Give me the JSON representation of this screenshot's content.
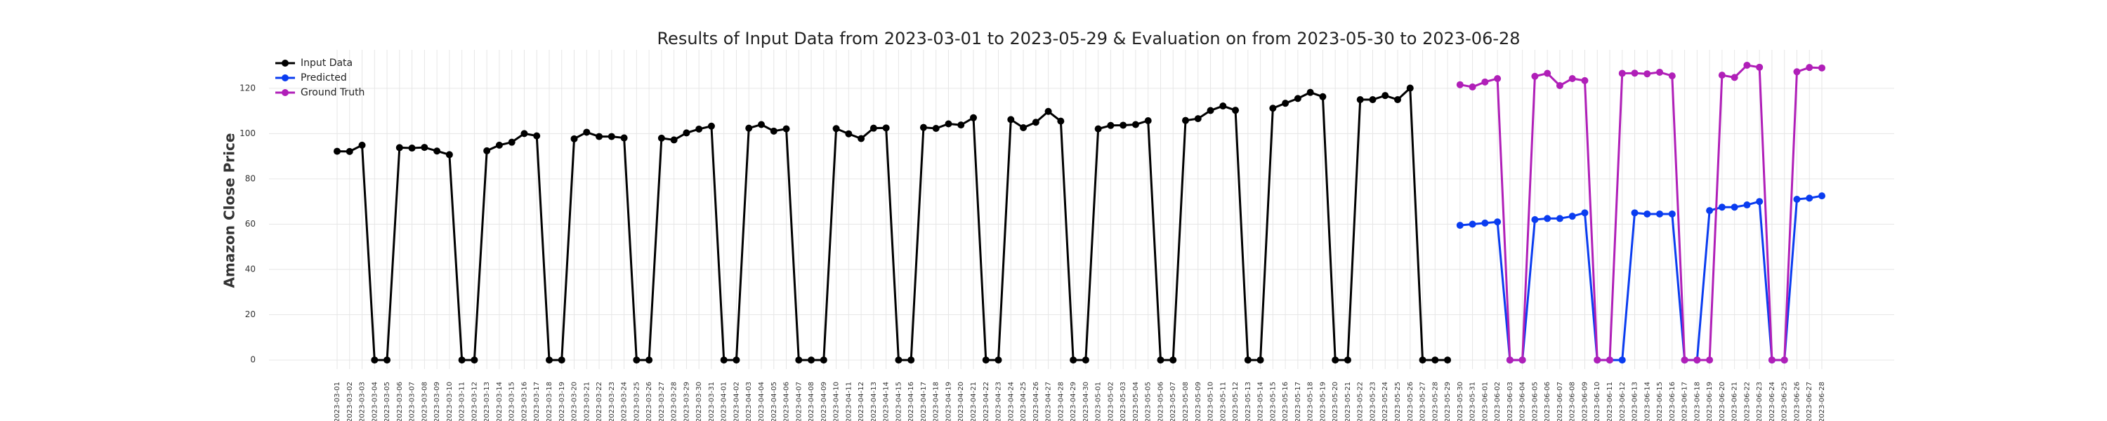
{
  "chart_data": {
    "type": "line",
    "title": "Results of Input Data from 2023-03-01 to 2023-05-29 & Evaluation on from 2023-05-30 to 2023-06-28",
    "y_label": "Amazon Close Price",
    "x": [
      "2023-03-01",
      "2023-03-02",
      "2023-03-03",
      "2023-03-04",
      "2023-03-05",
      "2023-03-06",
      "2023-03-07",
      "2023-03-08",
      "2023-03-09",
      "2023-03-10",
      "2023-03-11",
      "2023-03-12",
      "2023-03-13",
      "2023-03-14",
      "2023-03-15",
      "2023-03-16",
      "2023-03-17",
      "2023-03-18",
      "2023-03-19",
      "2023-03-20",
      "2023-03-21",
      "2023-03-22",
      "2023-03-23",
      "2023-03-24",
      "2023-03-25",
      "2023-03-26",
      "2023-03-27",
      "2023-03-28",
      "2023-03-29",
      "2023-03-30",
      "2023-03-31",
      "2023-04-01",
      "2023-04-02",
      "2023-04-03",
      "2023-04-04",
      "2023-04-05",
      "2023-04-06",
      "2023-04-07",
      "2023-04-08",
      "2023-04-09",
      "2023-04-10",
      "2023-04-11",
      "2023-04-12",
      "2023-04-13",
      "2023-04-14",
      "2023-04-15",
      "2023-04-16",
      "2023-04-17",
      "2023-04-18",
      "2023-04-19",
      "2023-04-20",
      "2023-04-21",
      "2023-04-22",
      "2023-04-23",
      "2023-04-24",
      "2023-04-25",
      "2023-04-26",
      "2023-04-27",
      "2023-04-28",
      "2023-04-29",
      "2023-04-30",
      "2023-05-01",
      "2023-05-02",
      "2023-05-03",
      "2023-05-04",
      "2023-05-05",
      "2023-05-06",
      "2023-05-07",
      "2023-05-08",
      "2023-05-09",
      "2023-05-10",
      "2023-05-11",
      "2023-05-12",
      "2023-05-13",
      "2023-05-14",
      "2023-05-15",
      "2023-05-16",
      "2023-05-17",
      "2023-05-18",
      "2023-05-19",
      "2023-05-20",
      "2023-05-21",
      "2023-05-22",
      "2023-05-23",
      "2023-05-24",
      "2023-05-25",
      "2023-05-26",
      "2023-05-27",
      "2023-05-28",
      "2023-05-29",
      "2023-05-30",
      "2023-05-31",
      "2023-06-01",
      "2023-06-02",
      "2023-06-03",
      "2023-06-04",
      "2023-06-05",
      "2023-06-06",
      "2023-06-07",
      "2023-06-08",
      "2023-06-09",
      "2023-06-10",
      "2023-06-11",
      "2023-06-12",
      "2023-06-13",
      "2023-06-14",
      "2023-06-15",
      "2023-06-16",
      "2023-06-17",
      "2023-06-18",
      "2023-06-19",
      "2023-06-20",
      "2023-06-21",
      "2023-06-22",
      "2023-06-23",
      "2023-06-24",
      "2023-06-25",
      "2023-06-26",
      "2023-06-27",
      "2023-06-28"
    ],
    "series": [
      {
        "name": "Input Data",
        "color": "#000000",
        "values": [
          92.2,
          92.1,
          94.9,
          0,
          0,
          93.8,
          93.6,
          93.9,
          92.3,
          90.7,
          0,
          0,
          92.4,
          94.9,
          96.2,
          100.0,
          99.0,
          0,
          0,
          97.7,
          100.6,
          98.7,
          98.7,
          98.1,
          0,
          0,
          98.0,
          97.2,
          100.3,
          102.0,
          103.3,
          0,
          0,
          102.4,
          104.0,
          101.1,
          102.1,
          0,
          0,
          0,
          102.2,
          99.9,
          97.8,
          102.4,
          102.5,
          0,
          0,
          102.7,
          102.3,
          104.3,
          103.8,
          107.0,
          0,
          0,
          106.2,
          102.6,
          105.0,
          109.8,
          105.5,
          0,
          0,
          102.1,
          103.6,
          103.7,
          104.0,
          105.7,
          0,
          0,
          105.8,
          106.6,
          110.2,
          112.2,
          110.3,
          0,
          0,
          111.2,
          113.4,
          115.5,
          118.2,
          116.3,
          0,
          0,
          115.0,
          115.0,
          116.8,
          115.0,
          120.1,
          0,
          0,
          0,
          null,
          null,
          null,
          null,
          null,
          null,
          null,
          null,
          null,
          null,
          null,
          null,
          null,
          null,
          null,
          null,
          null,
          null,
          null,
          null,
          null,
          null,
          null,
          null,
          null,
          null,
          null,
          null,
          null,
          null
        ]
      },
      {
        "name": "Predicted",
        "color": "#0a3cf0",
        "values": [
          null,
          null,
          null,
          null,
          null,
          null,
          null,
          null,
          null,
          null,
          null,
          null,
          null,
          null,
          null,
          null,
          null,
          null,
          null,
          null,
          null,
          null,
          null,
          null,
          null,
          null,
          null,
          null,
          null,
          null,
          null,
          null,
          null,
          null,
          null,
          null,
          null,
          null,
          null,
          null,
          null,
          null,
          null,
          null,
          null,
          null,
          null,
          null,
          null,
          null,
          null,
          null,
          null,
          null,
          null,
          null,
          null,
          null,
          null,
          null,
          null,
          null,
          null,
          null,
          null,
          null,
          null,
          null,
          null,
          null,
          null,
          null,
          null,
          null,
          null,
          null,
          null,
          null,
          null,
          null,
          null,
          null,
          null,
          null,
          null,
          null,
          null,
          null,
          null,
          null,
          59.5,
          60,
          60.5,
          61,
          0,
          0,
          62,
          62.5,
          62.5,
          63.5,
          65,
          0,
          0,
          0,
          65,
          64.5,
          64.5,
          64.5,
          0,
          0,
          66,
          67.5,
          67.5,
          68.5,
          70,
          0,
          0,
          71,
          71.5,
          72.5
        ]
      },
      {
        "name": "Ground Truth",
        "color": "#b01fb8",
        "values": [
          null,
          null,
          null,
          null,
          null,
          null,
          null,
          null,
          null,
          null,
          null,
          null,
          null,
          null,
          null,
          null,
          null,
          null,
          null,
          null,
          null,
          null,
          null,
          null,
          null,
          null,
          null,
          null,
          null,
          null,
          null,
          null,
          null,
          null,
          null,
          null,
          null,
          null,
          null,
          null,
          null,
          null,
          null,
          null,
          null,
          null,
          null,
          null,
          null,
          null,
          null,
          null,
          null,
          null,
          null,
          null,
          null,
          null,
          null,
          null,
          null,
          null,
          null,
          null,
          null,
          null,
          null,
          null,
          null,
          null,
          null,
          null,
          null,
          null,
          null,
          null,
          null,
          null,
          null,
          null,
          null,
          null,
          null,
          null,
          null,
          null,
          null,
          null,
          null,
          null,
          121.6,
          120.6,
          122.8,
          124.3,
          0,
          0,
          125.3,
          126.6,
          121.2,
          124.3,
          123.4,
          0,
          0,
          126.6,
          126.7,
          126.4,
          127.1,
          125.5,
          0,
          0,
          0,
          125.8,
          124.8,
          130.2,
          129.3,
          0,
          0,
          127.3,
          129.2,
          129.0
        ]
      }
    ],
    "ylim": [
      -4,
      137
    ],
    "yticks": [
      0,
      20,
      40,
      60,
      80,
      100,
      120
    ],
    "grid": true,
    "legend": "upper left"
  }
}
